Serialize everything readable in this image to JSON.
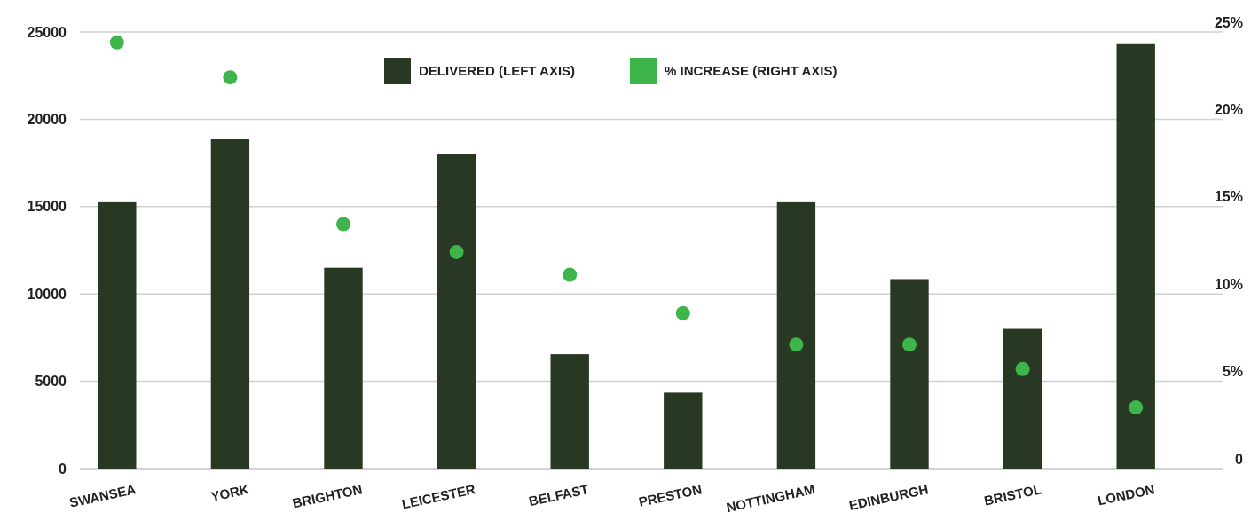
{
  "chart_data": {
    "type": "bar",
    "categories": [
      "SWANSEA",
      "YORK",
      "BRIGHTON",
      "LEICESTER",
      "BELFAST",
      "PRESTON",
      "NOTTINGHAM",
      "EDINBURGH",
      "BRISTOL",
      "LONDON"
    ],
    "series": [
      {
        "name": "DELIVERED (LEFT AXIS)",
        "color": "#283822",
        "values": [
          15250,
          18850,
          11500,
          18000,
          6550,
          4350,
          15250,
          10850,
          8000,
          24300
        ]
      },
      {
        "name": "% INCREASE (RIGHT AXIS)",
        "type": "scatter",
        "axis": "y2",
        "color": "#3db54a",
        "values": [
          24.4,
          22.4,
          14.0,
          12.4,
          11.1,
          8.9,
          7.1,
          7.1,
          5.7,
          3.5
        ]
      }
    ],
    "ylim": [
      0,
      25000
    ],
    "yticks": [
      0,
      5000,
      10000,
      15000,
      20000,
      25000
    ],
    "y2lim": [
      0,
      25
    ],
    "y2ticks": [
      {
        "value": 0,
        "label": "0"
      },
      {
        "value": 5,
        "label": "5%"
      },
      {
        "value": 10,
        "label": "10%"
      },
      {
        "value": 15,
        "label": "15%"
      },
      {
        "value": 20,
        "label": "20%"
      },
      {
        "value": 25,
        "label": "25%"
      }
    ],
    "grid": "y",
    "legend": "top",
    "marker": "circle"
  }
}
